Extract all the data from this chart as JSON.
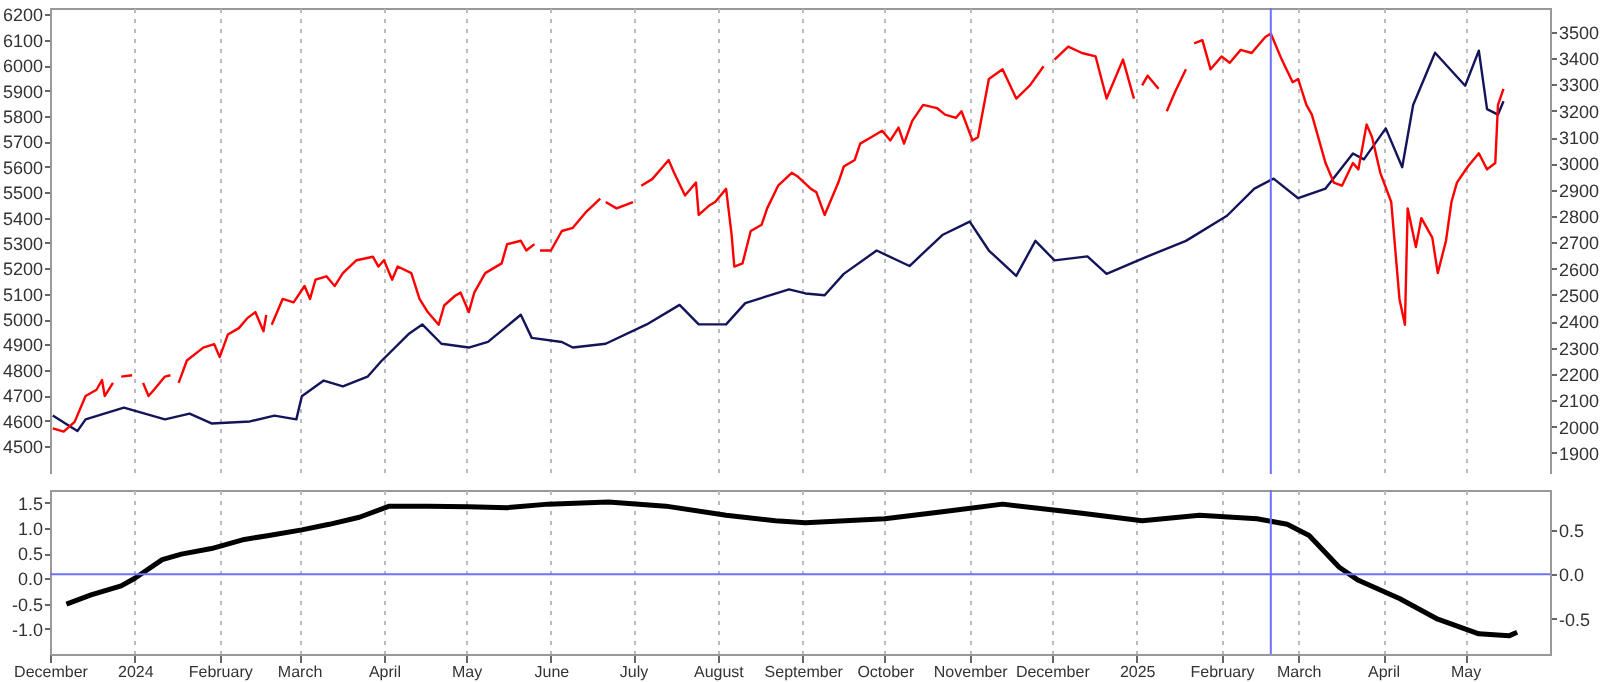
{
  "chart_data": [
    {
      "type": "line",
      "xlim": [
        "2023-12-01",
        "2025-06-01"
      ],
      "xticks": [
        {
          "value": "2023-12-01",
          "label": null
        },
        {
          "value": "2024-01-01",
          "label": null
        },
        {
          "value": "2024-02-01",
          "label": null
        },
        {
          "value": "2024-03-01",
          "label": null
        },
        {
          "value": "2024-04-01",
          "label": null
        },
        {
          "value": "2024-05-01",
          "label": null
        },
        {
          "value": "2024-06-01",
          "label": null
        },
        {
          "value": "2024-07-01",
          "label": null
        },
        {
          "value": "2024-08-01",
          "label": null
        },
        {
          "value": "2024-09-01",
          "label": null
        },
        {
          "value": "2024-10-01",
          "label": null
        },
        {
          "value": "2024-11-01",
          "label": null
        },
        {
          "value": "2024-12-01",
          "label": null
        },
        {
          "value": "2025-01-01",
          "label": null
        },
        {
          "value": "2025-02-01",
          "label": null
        },
        {
          "value": "2025-03-01",
          "label": null
        },
        {
          "value": "2025-04-01",
          "label": null
        },
        {
          "value": "2025-05-01",
          "label": null
        }
      ],
      "ylim": [
        4390,
        6225
      ],
      "yticks": [
        4500,
        4600,
        4700,
        4800,
        4900,
        5000,
        5100,
        5200,
        5300,
        5400,
        5500,
        5600,
        5700,
        5800,
        5900,
        6000,
        6100,
        6200
      ],
      "y2lim": [
        1820,
        3590
      ],
      "y2ticks": [
        1900,
        2000,
        2100,
        2200,
        2300,
        2400,
        2500,
        2600,
        2700,
        2800,
        2900,
        3000,
        3100,
        3200,
        3300,
        3400,
        3500
      ],
      "grid": "x",
      "tick_labels": "y",
      "line_style": "solid",
      "ref_lines": [
        {
          "axis": "x",
          "value": "2025-02-19",
          "color": "#7070ff"
        }
      ],
      "series": [
        {
          "color": "#14145a",
          "x": [
            "2023-12-02",
            "2023-12-11",
            "2023-12-14",
            "2023-12-28",
            "2024-01-12",
            "2024-01-21",
            "2024-01-29",
            "2024-02-12",
            "2024-02-21",
            "2024-02-29",
            "2024-03-02",
            "2024-03-10",
            "2024-03-17",
            "2024-03-26",
            "2024-03-31",
            "2024-04-10",
            "2024-04-15",
            "2024-04-22",
            "2024-05-02",
            "2024-05-09",
            "2024-05-21",
            "2024-05-25",
            "2024-06-05",
            "2024-06-09",
            "2024-06-21",
            "2024-07-06",
            "2024-07-18",
            "2024-07-25",
            "2024-08-04",
            "2024-08-11",
            "2024-08-27",
            "2024-09-02",
            "2024-09-09",
            "2024-09-16",
            "2024-09-28",
            "2024-10-10",
            "2024-10-22",
            "2024-11-01",
            "2024-11-08",
            "2024-11-18",
            "2024-11-25",
            "2024-12-02",
            "2024-12-14",
            "2024-12-21",
            "2025-01-05",
            "2025-01-19",
            "2025-02-03",
            "2025-02-13",
            "2025-02-20",
            "2025-03-01",
            "2025-03-11",
            "2025-03-21",
            "2025-03-25",
            "2025-04-02",
            "2025-04-08",
            "2025-04-12",
            "2025-04-20",
            "2025-05-01",
            "2025-05-06",
            "2025-05-09",
            "2025-05-13",
            "2025-05-15"
          ],
          "values": [
            4620,
            4559,
            4605,
            4651,
            4605,
            4628,
            4589,
            4597,
            4620,
            4605,
            4696,
            4758,
            4735,
            4773,
            4834,
            4941,
            4979,
            4903,
            4888,
            4910,
            5017,
            4926,
            4910,
            4888,
            4903,
            4979,
            5056,
            4979,
            4979,
            5063,
            5117,
            5101,
            5094,
            5178,
            5270,
            5209,
            5331,
            5384,
            5270,
            5170,
            5308,
            5231,
            5247,
            5178,
            5247,
            5308,
            5407,
            5514,
            5553,
            5476,
            5514,
            5652,
            5629,
            5751,
            5598,
            5843,
            6049,
            5919,
            6057,
            5827,
            5805,
            5858
          ]
        },
        {
          "color": "#ff0000",
          "axis": "y2",
          "x": [
            "2023-12-02",
            "2023-12-06",
            "2023-12-10",
            "2023-12-14",
            "2023-12-18",
            "2023-12-20",
            "2023-12-21",
            "2023-12-24",
            "2023-12-25",
            "2023-12-27",
            "2023-12-31",
            "2024-01-02",
            "2024-01-04",
            "2024-01-06",
            "2024-01-08",
            "2024-01-12",
            "2024-01-14",
            "2024-01-16",
            "2024-01-17",
            "2024-01-20",
            "2024-01-26",
            "2024-01-30",
            "2024-02-01",
            "2024-02-04",
            "2024-02-08",
            "2024-02-11",
            "2024-02-14",
            "2024-02-17",
            "2024-02-18",
            "2024-02-19",
            "2024-02-20",
            "2024-02-24",
            "2024-02-28",
            "2024-03-03",
            "2024-03-05",
            "2024-03-07",
            "2024-03-11",
            "2024-03-14",
            "2024-03-17",
            "2024-03-22",
            "2024-03-28",
            "2024-03-30",
            "2024-04-01",
            "2024-04-04",
            "2024-04-06",
            "2024-04-11",
            "2024-04-14",
            "2024-04-17",
            "2024-04-21",
            "2024-04-23",
            "2024-04-27",
            "2024-04-29",
            "2024-05-02",
            "2024-05-04",
            "2024-05-08",
            "2024-05-14",
            "2024-05-16",
            "2024-05-21",
            "2024-05-23",
            "2024-05-26",
            "2024-05-27",
            "2024-05-28",
            "2024-06-01",
            "2024-06-05",
            "2024-06-09",
            "2024-06-14",
            "2024-06-19",
            "2024-06-20",
            "2024-06-21",
            "2024-06-25",
            "2024-07-01",
            "2024-07-02",
            "2024-07-04",
            "2024-07-08",
            "2024-07-12",
            "2024-07-14",
            "2024-07-16",
            "2024-07-20",
            "2024-07-24",
            "2024-07-25",
            "2024-07-29",
            "2024-07-31",
            "2024-08-04",
            "2024-08-06",
            "2024-08-07",
            "2024-08-10",
            "2024-08-13",
            "2024-08-17",
            "2024-08-19",
            "2024-08-23",
            "2024-08-28",
            "2024-08-30",
            "2024-09-04",
            "2024-09-06",
            "2024-09-09",
            "2024-09-14",
            "2024-09-16",
            "2024-09-20",
            "2024-09-22",
            "2024-09-26",
            "2024-09-30",
            "2024-10-03",
            "2024-10-06",
            "2024-10-08",
            "2024-10-11",
            "2024-10-15",
            "2024-10-20",
            "2024-10-23",
            "2024-10-27",
            "2024-10-29",
            "2024-11-02",
            "2024-11-04",
            "2024-11-08",
            "2024-11-13",
            "2024-11-18",
            "2024-11-23",
            "2024-11-28",
            "2024-11-30",
            "2024-12-02",
            "2024-12-07",
            "2024-12-12",
            "2024-12-17",
            "2024-12-21",
            "2024-12-27",
            "2024-12-31",
            "2025-01-02",
            "2025-01-03",
            "2025-01-05",
            "2025-01-09",
            "2025-01-10",
            "2025-01-12",
            "2025-01-15",
            "2025-01-19",
            "2025-01-20",
            "2025-01-22",
            "2025-01-25",
            "2025-01-28",
            "2025-02-01",
            "2025-02-04",
            "2025-02-08",
            "2025-02-12",
            "2025-02-17",
            "2025-02-19",
            "2025-02-23",
            "2025-02-27",
            "2025-03-01",
            "2025-03-04",
            "2025-03-06",
            "2025-03-11",
            "2025-03-14",
            "2025-03-17",
            "2025-03-21",
            "2025-03-23",
            "2025-03-26",
            "2025-03-28",
            "2025-03-31",
            "2025-04-04",
            "2025-04-07",
            "2025-04-09",
            "2025-04-10",
            "2025-04-13",
            "2025-04-15",
            "2025-04-19",
            "2025-04-21",
            "2025-04-24",
            "2025-04-26",
            "2025-04-28",
            "2025-05-02",
            "2025-05-06",
            "2025-05-09",
            "2025-05-12",
            "2025-05-13",
            "2025-05-15"
          ],
          "values": [
            1993,
            1981,
            2018,
            2116,
            2140,
            2177,
            2116,
            2166,
            null,
            2190,
            2195,
            null,
            2166,
            2116,
            2140,
            2190,
            2195,
            null,
            2166,
            2251,
            2300,
            2313,
            2264,
            2350,
            2374,
            2411,
            2435,
            2362,
            2424,
            null,
            2387,
            2485,
            2472,
            2534,
            2485,
            2558,
            2571,
            2534,
            2583,
            2632,
            2645,
            2608,
            2632,
            2558,
            2608,
            2583,
            2485,
            2435,
            2387,
            2460,
            2497,
            2509,
            2435,
            2509,
            2583,
            2620,
            2693,
            2706,
            2669,
            2693,
            null,
            2669,
            2669,
            2743,
            2755,
            2817,
            2866,
            null,
            2853,
            2829,
            2853,
            null,
            2915,
            2940,
            2988,
            3013,
            2964,
            2878,
            2927,
            2804,
            2841,
            2853,
            2903,
            2730,
            2608,
            2620,
            2743,
            2767,
            2829,
            2915,
            2964,
            2951,
            2903,
            2890,
            2804,
            2927,
            2988,
            3013,
            3075,
            3099,
            3124,
            3087,
            3136,
            3075,
            3161,
            3222,
            3210,
            3185,
            3173,
            3198,
            3087,
            3099,
            3320,
            3357,
            3246,
            3296,
            3369,
            null,
            3394,
            3443,
            3419,
            3406,
            3246,
            3394,
            3246,
            null,
            3296,
            3333,
            3283,
            null,
            3198,
            3271,
            3357,
            null,
            3456,
            3468,
            3357,
            3406,
            3382,
            3431,
            3419,
            3480,
            3493,
            3394,
            3308,
            3320,
            3222,
            3185,
            3001,
            2927,
            2915,
            3001,
            2977,
            3148,
            3099,
            2964,
            2853,
            2485,
            2387,
            2829,
            2682,
            2792,
            2718,
            2583,
            2706,
            2853,
            2927,
            2988,
            3038,
            2977,
            3001,
            3222,
            3283
          ]
        }
      ]
    },
    {
      "type": "line",
      "xlim": [
        "2023-12-01",
        "2025-06-01"
      ],
      "xticks": [
        {
          "value": "2023-12-01",
          "label": "December"
        },
        {
          "value": "2024-01-01",
          "label": "2024"
        },
        {
          "value": "2024-02-01",
          "label": "February"
        },
        {
          "value": "2024-03-01",
          "label": "March"
        },
        {
          "value": "2024-04-01",
          "label": "April"
        },
        {
          "value": "2024-05-01",
          "label": "May"
        },
        {
          "value": "2024-06-01",
          "label": "June"
        },
        {
          "value": "2024-07-01",
          "label": "July"
        },
        {
          "value": "2024-08-01",
          "label": "August"
        },
        {
          "value": "2024-09-01",
          "label": "September"
        },
        {
          "value": "2024-10-01",
          "label": "October"
        },
        {
          "value": "2024-11-01",
          "label": "November"
        },
        {
          "value": "2024-12-01",
          "label": "December"
        },
        {
          "value": "2025-01-01",
          "label": "2025"
        },
        {
          "value": "2025-02-01",
          "label": "February"
        },
        {
          "value": "2025-03-01",
          "label": "March"
        },
        {
          "value": "2025-04-01",
          "label": "April"
        },
        {
          "value": "2025-05-01",
          "label": "May"
        }
      ],
      "ylim": [
        -1.5,
        1.75
      ],
      "yticks": [
        {
          "value": -1,
          "label": "-1.0"
        },
        -0.5,
        {
          "value": 0,
          "label": "0.0"
        },
        0.5,
        {
          "value": 1,
          "label": "1.0"
        },
        1.5
      ],
      "y2lim": [
        -0.9,
        0.95
      ],
      "y2ticks": [
        -0.5,
        {
          "value": 0,
          "label": "0.0"
        },
        0.5
      ],
      "grid": "x",
      "line_style": "solid",
      "ref_lines": [
        {
          "axis": "x",
          "value": "2025-02-19",
          "color": "#7070ff"
        },
        {
          "axis": "y2",
          "value": 0,
          "color": "#7070ff"
        }
      ],
      "x": [
        "2023-12-07",
        "2023-12-16",
        "2023-12-27",
        "2024-01-01",
        "2024-01-11",
        "2024-01-18",
        "2024-01-29",
        "2024-02-10",
        "2024-02-19",
        "2024-03-02",
        "2024-03-12",
        "2024-03-23",
        "2024-04-03",
        "2024-04-17",
        "2024-05-02",
        "2024-05-16",
        "2024-05-31",
        "2024-06-22",
        "2024-07-13",
        "2024-08-04",
        "2024-08-22",
        "2024-09-02",
        "2024-10-01",
        "2024-10-22",
        "2024-11-13",
        "2024-12-12",
        "2025-01-03",
        "2025-01-24",
        "2025-02-14",
        "2025-02-25",
        "2025-03-05",
        "2025-03-16",
        "2025-03-23",
        "2025-04-07",
        "2025-04-21",
        "2025-05-06",
        "2025-05-17",
        "2025-05-20"
      ],
      "series": [
        {
          "color": "#000000",
          "values": [
            -0.51,
            -0.33,
            -0.15,
            0,
            0.37,
            0.48,
            0.59,
            0.77,
            0.85,
            0.96,
            1.07,
            1.21,
            1.43,
            1.43,
            1.42,
            1.4,
            1.47,
            1.51,
            1.43,
            1.25,
            1.14,
            1.1,
            1.18,
            1.32,
            1.47,
            1.29,
            1.14,
            1.25,
            1.18,
            1.07,
            0.85,
            0.22,
            -0.04,
            -0.4,
            -0.81,
            -1.1,
            -1.14,
            -1.07
          ]
        }
      ]
    }
  ]
}
